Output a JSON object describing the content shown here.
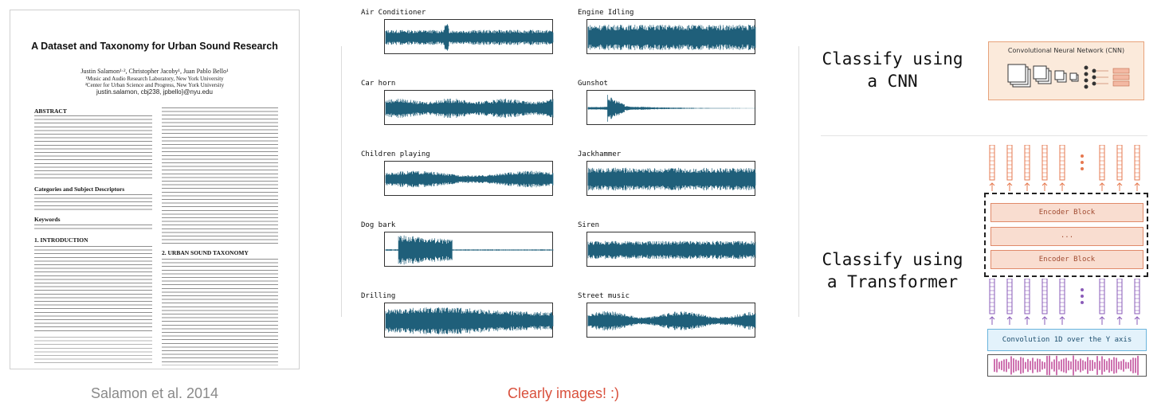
{
  "paper": {
    "title": "A Dataset and Taxonomy for Urban Sound Research",
    "authors": "Justin Salamon¹·², Christopher Jacoby¹, Juan Pablo Bello¹",
    "affiliation1": "¹Music and Audio Research Laboratory, New York University",
    "affiliation2": "²Center for Urban Science and Progress, New York University",
    "emails": "justin.salamon, cbj238, jpbello}@nyu.edu",
    "sections": [
      "ABSTRACT",
      "Categories and Subject Descriptors",
      "Keywords",
      "1.   INTRODUCTION",
      "2.   URBAN SOUND TAXONOMY"
    ],
    "caption": "Salamon et al. 2014"
  },
  "waveforms": {
    "items": [
      "Air Conditioner",
      "Engine Idling",
      "Car horn",
      "Gunshot",
      "Children playing",
      "Jackhammer",
      "Dog bark",
      "Siren",
      "Drilling",
      "Street music"
    ],
    "caption": "Clearly images! :)",
    "color": "#1f5f7a",
    "caption_color": "#d9503c"
  },
  "right": {
    "cnn_label_line1": "Classify using",
    "cnn_label_line2": "a CNN",
    "cnn_box_title": "Convolutional Neural Network (CNN)",
    "transformer_label_line1": "Classify using",
    "transformer_label_line2": "a Transformer",
    "encoder_block_1": "Encoder Block",
    "encoder_ellipsis": "...",
    "encoder_block_2": "Encoder Block",
    "conv_label": "Convolution 1D over the Y axis",
    "output_token_color": "#e6784f",
    "input_token_color": "#8a5bb8",
    "audio_color": "#c24f9c"
  }
}
